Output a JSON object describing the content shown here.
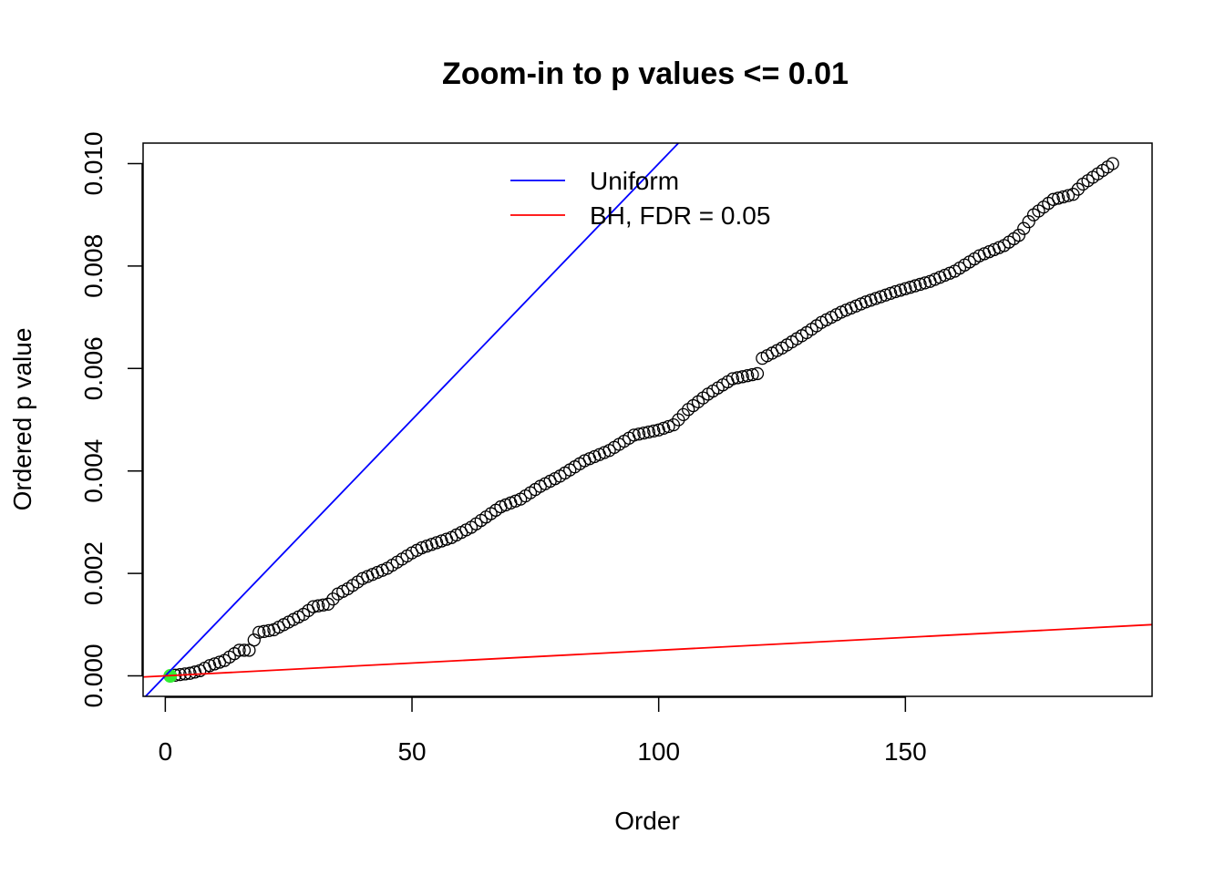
{
  "chart_data": {
    "type": "scatter",
    "title": "Zoom-in to p values <= 0.01",
    "xlabel": "Order",
    "ylabel": "Ordered p value",
    "xlim": [
      -4.5,
      200
    ],
    "ylim": [
      -0.0004,
      0.0104
    ],
    "x_ticks": [
      0,
      50,
      100,
      150
    ],
    "x_tick_labels": [
      "0",
      "50",
      "100",
      "150"
    ],
    "y_ticks": [
      0.0,
      0.002,
      0.004,
      0.006,
      0.008,
      0.01
    ],
    "y_tick_labels": [
      "0.000",
      "0.002",
      "0.004",
      "0.006",
      "0.008",
      "0.010"
    ],
    "grid": false,
    "legend_position": "top-center",
    "legend": [
      {
        "label": "Uniform",
        "color": "#0000ff"
      },
      {
        "label": "BH, FDR = 0.05",
        "color": "#ff0000"
      }
    ],
    "lines": [
      {
        "name": "Uniform",
        "color": "#0000ff",
        "slope": 0.0001,
        "intercept": 0
      },
      {
        "name": "BH, FDR = 0.05",
        "color": "#ff0000",
        "slope": 5e-06,
        "intercept": 0
      }
    ],
    "point_color": "#000000",
    "highlight_color": "#33ee33",
    "highlight_points": [
      {
        "x": 1,
        "y": 0.0
      }
    ],
    "anchors": [
      [
        1,
        0.0
      ],
      [
        5,
        5e-05
      ],
      [
        7,
        0.0001
      ],
      [
        9,
        0.0002
      ],
      [
        12,
        0.0003
      ],
      [
        15,
        0.0005
      ],
      [
        17,
        0.0005
      ],
      [
        18,
        0.0007
      ],
      [
        19,
        0.00085
      ],
      [
        22,
        0.0009
      ],
      [
        25,
        0.00105
      ],
      [
        28,
        0.0012
      ],
      [
        30,
        0.00135
      ],
      [
        33,
        0.0014
      ],
      [
        35,
        0.0016
      ],
      [
        37,
        0.0017
      ],
      [
        40,
        0.0019
      ],
      [
        45,
        0.0021
      ],
      [
        50,
        0.0024
      ],
      [
        52,
        0.0025
      ],
      [
        55,
        0.0026
      ],
      [
        58,
        0.0027
      ],
      [
        62,
        0.0029
      ],
      [
        68,
        0.0033
      ],
      [
        72,
        0.00345
      ],
      [
        76,
        0.0037
      ],
      [
        80,
        0.0039
      ],
      [
        85,
        0.0042
      ],
      [
        90,
        0.0044
      ],
      [
        95,
        0.0047
      ],
      [
        100,
        0.0048
      ],
      [
        103,
        0.0049
      ],
      [
        106,
        0.0052
      ],
      [
        110,
        0.0055
      ],
      [
        115,
        0.0058
      ],
      [
        120,
        0.0059
      ],
      [
        121,
        0.0062
      ],
      [
        125,
        0.0064
      ],
      [
        130,
        0.0067
      ],
      [
        133,
        0.0069
      ],
      [
        137,
        0.0071
      ],
      [
        142,
        0.0073
      ],
      [
        148,
        0.0075
      ],
      [
        155,
        0.0077
      ],
      [
        160,
        0.0079
      ],
      [
        165,
        0.0082
      ],
      [
        170,
        0.0084
      ],
      [
        173,
        0.0086
      ],
      [
        176,
        0.009
      ],
      [
        180,
        0.0093
      ],
      [
        184,
        0.0094
      ],
      [
        186,
        0.0096
      ],
      [
        189,
        0.0098
      ],
      [
        192,
        0.01
      ]
    ]
  }
}
